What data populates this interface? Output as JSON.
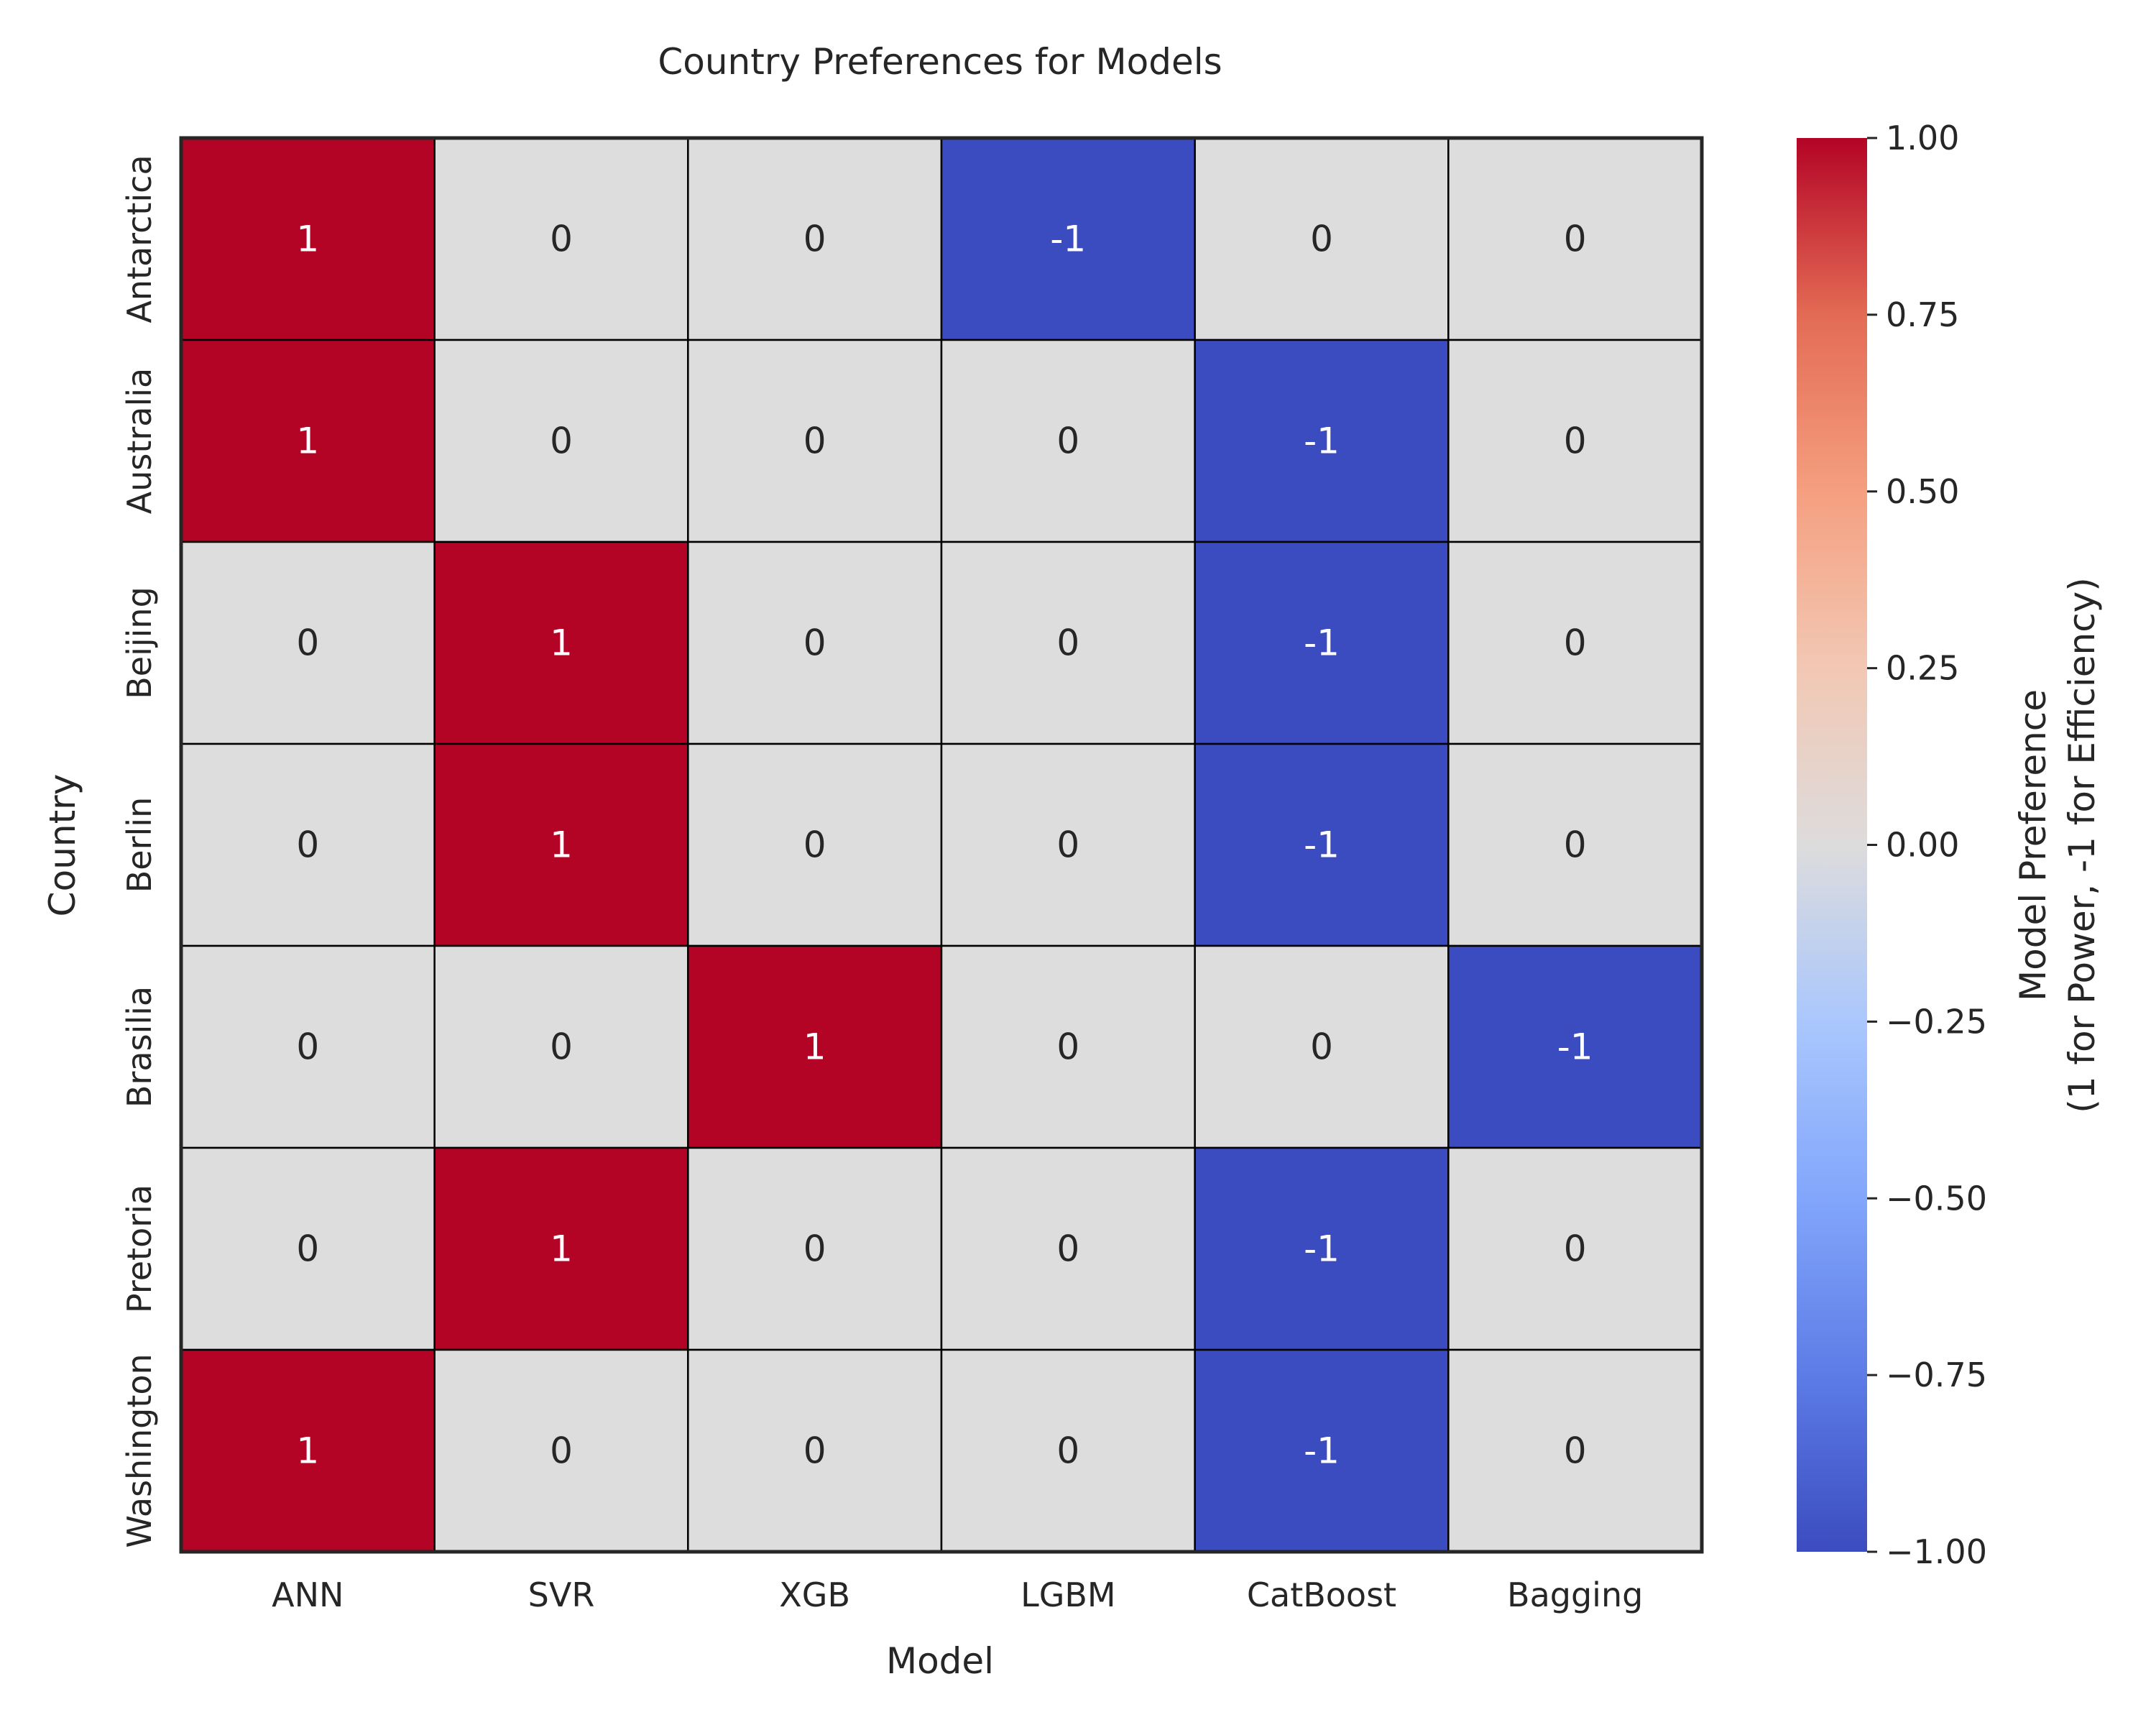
{
  "chart_data": {
    "type": "heatmap",
    "title": "Country Preferences for Models",
    "xlabel": "Model",
    "ylabel": "Country",
    "x_categories": [
      "ANN",
      "SVR",
      "XGB",
      "LGBM",
      "CatBoost",
      "Bagging"
    ],
    "y_categories": [
      "Antarctica",
      "Australia",
      "Beijing",
      "Berlin",
      "Brasilia",
      "Pretoria",
      "Washington"
    ],
    "values": [
      [
        1,
        0,
        0,
        -1,
        0,
        0
      ],
      [
        1,
        0,
        0,
        0,
        -1,
        0
      ],
      [
        0,
        1,
        0,
        0,
        -1,
        0
      ],
      [
        0,
        1,
        0,
        0,
        -1,
        0
      ],
      [
        0,
        0,
        1,
        0,
        0,
        -1
      ],
      [
        0,
        1,
        0,
        0,
        -1,
        0
      ],
      [
        1,
        0,
        0,
        0,
        -1,
        0
      ]
    ],
    "colormap": "coolwarm",
    "vmin": -1,
    "vmax": 1,
    "annotations": true,
    "colorbar": {
      "label_lines": [
        "Model Preference",
        "(1 for Power, -1 for Efficiency)"
      ],
      "ticks": [
        1.0,
        0.75,
        0.5,
        0.25,
        0.0,
        -0.25,
        -0.5,
        -0.75,
        -1.0
      ],
      "tick_labels": [
        "1.00",
        "0.75",
        "0.50",
        "0.25",
        "0.00",
        "−0.25",
        "−0.50",
        "−0.75",
        "−1.00"
      ]
    },
    "colors": {
      "high": "#b40426",
      "mid": "#dddddd",
      "low": "#3b4cc0",
      "grid": "#000000"
    }
  }
}
